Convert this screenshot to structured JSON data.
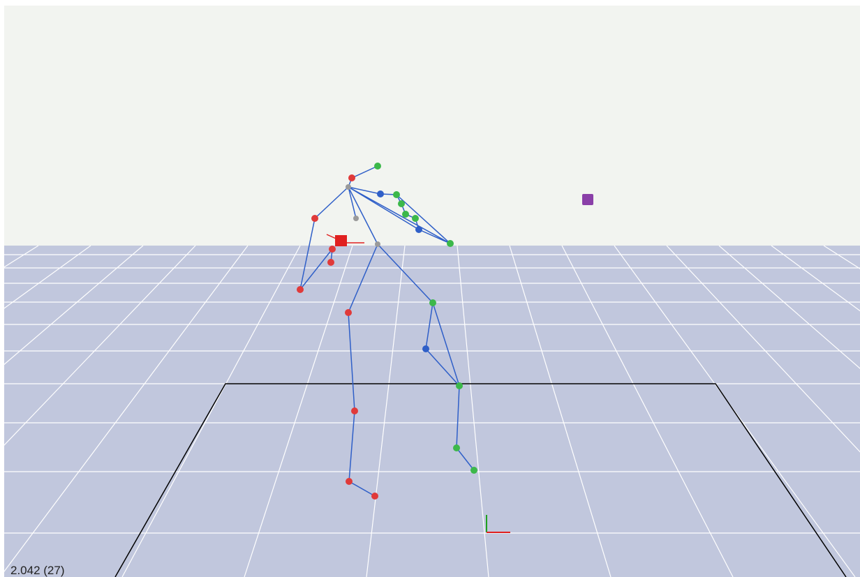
{
  "status": {
    "time_label": "2.042 (27)"
  }
}
